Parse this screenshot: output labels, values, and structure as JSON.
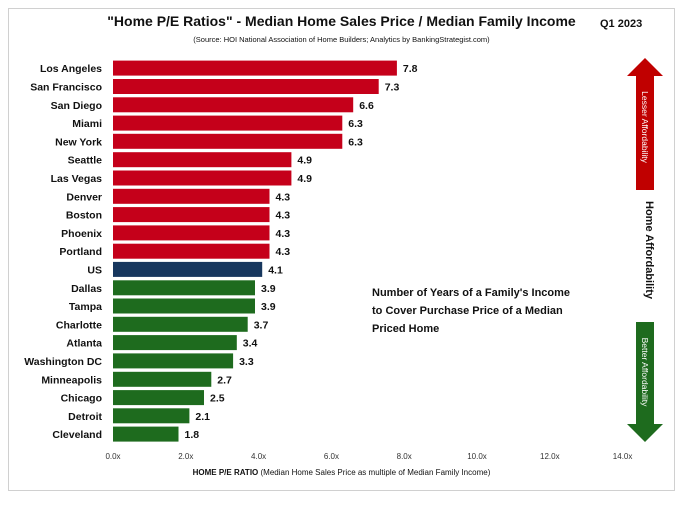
{
  "header": {
    "title": "\"Home P/E Ratios\" - Median Home Sales Price / Median Family Income",
    "source": "(Source: HOI National Association of Home Builders; Analytics by BankingStrategist.com)",
    "period": "Q1 2023"
  },
  "annotation": {
    "line1": "Number of Years of a Family's Income",
    "line2": "to Cover Purchase Price of a Median",
    "line3": "Priced Home"
  },
  "side": {
    "mid_label": "Home Affordability",
    "top_arrow_label": "Lesser Affordability",
    "bottom_arrow_label": "Better Affordability"
  },
  "colors": {
    "high": "#c5001a",
    "us": "#17375e",
    "low": "#1e6b1e",
    "arrow_red": "#c00000",
    "arrow_green": "#1e6b1e"
  },
  "xaxis": {
    "label_bold": "HOME P/E RATIO",
    "label_rest": " (Median Home Sales  Price as multiple of Median Family Income)"
  },
  "chart_data": {
    "type": "bar",
    "orientation": "horizontal",
    "title": "\"Home P/E Ratios\" - Median Home Sales Price / Median Family Income",
    "xlabel": "HOME P/E RATIO (Median Home Sales  Price as multiple of Median Family Income)",
    "xlim": [
      0,
      14
    ],
    "tick_labels": [
      "0.0x",
      "2.0x",
      "4.0x",
      "6.0x",
      "8.0x",
      "10.0x",
      "12.0x",
      "14.0x"
    ],
    "categories": [
      "Los Angeles",
      "San Francisco",
      "San Diego",
      "Miami",
      "New York",
      "Seattle",
      "Las Vegas",
      "Denver",
      "Boston",
      "Phoenix",
      "Portland",
      "US",
      "Dallas",
      "Tampa",
      "Charlotte",
      "Atlanta",
      "Washington DC",
      "Minneapolis",
      "Chicago",
      "Detroit",
      "Cleveland"
    ],
    "values": [
      7.8,
      7.3,
      6.6,
      6.3,
      6.3,
      4.9,
      4.9,
      4.3,
      4.3,
      4.3,
      4.3,
      4.1,
      3.9,
      3.9,
      3.7,
      3.4,
      3.3,
      2.7,
      2.5,
      2.1,
      1.8
    ],
    "value_labels": [
      "7.8",
      "7.3",
      "6.6",
      "6.3",
      "6.3",
      "4.9",
      "4.9",
      "4.3",
      "4.3",
      "4.3",
      "4.3",
      "4.1",
      "3.9",
      "3.9",
      "3.7",
      "3.4",
      "3.3",
      "2.7",
      "2.5",
      "2.1",
      "1.8"
    ],
    "bar_groups": [
      "high",
      "high",
      "high",
      "high",
      "high",
      "high",
      "high",
      "high",
      "high",
      "high",
      "high",
      "us",
      "low",
      "low",
      "low",
      "low",
      "low",
      "low",
      "low",
      "low",
      "low"
    ],
    "grid": false
  }
}
